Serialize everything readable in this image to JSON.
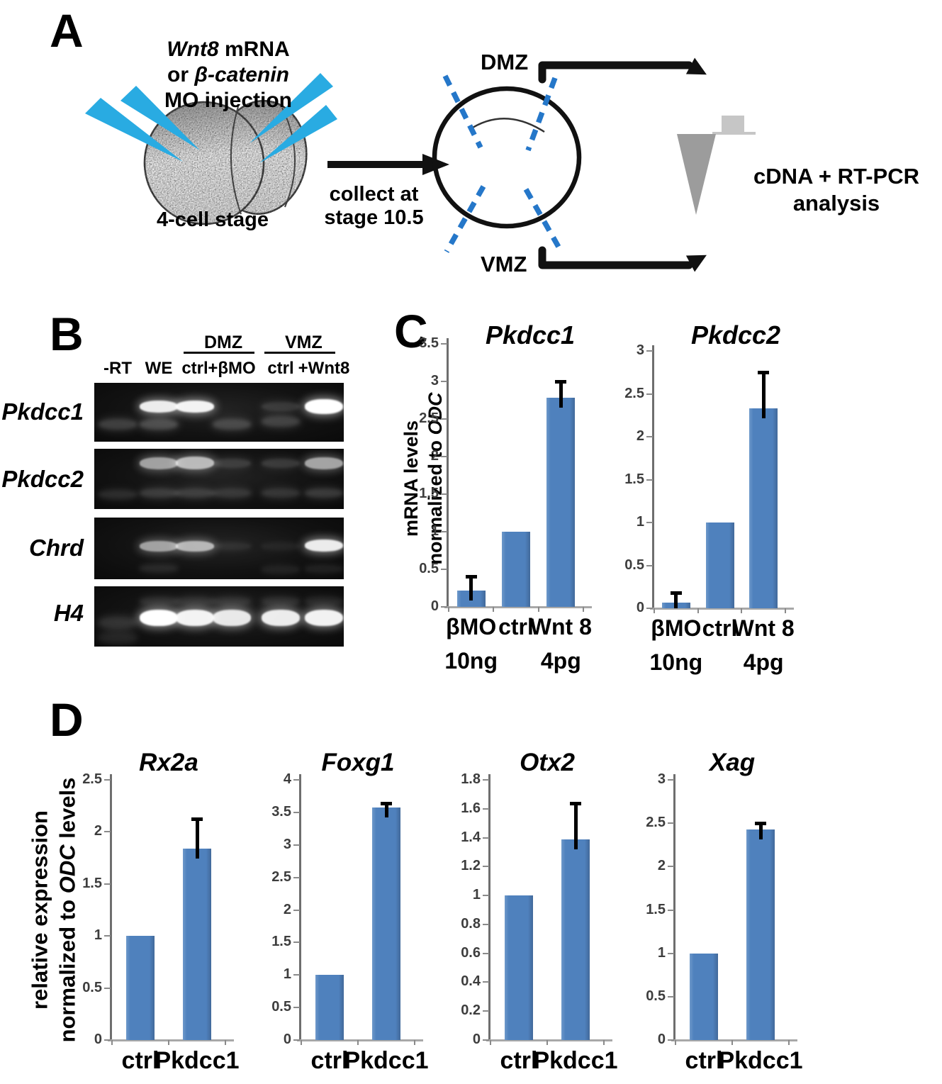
{
  "panel_labels": {
    "a": "A",
    "b": "B",
    "c": "C",
    "d": "D"
  },
  "panel_a": {
    "injection": {
      "l1a": "Wnt8",
      "l1b": " mRNA",
      "l2a": "or ",
      "l2b": "β-catenin",
      "l3": "MO injection"
    },
    "stage_label": "4-cell stage",
    "arrow_label_l1": "collect at",
    "arrow_label_l2": "stage 10.5",
    "dmz": "DMZ",
    "vmz": "VMZ",
    "result_l1": "cDNA + RT-PCR",
    "result_l2": "analysis",
    "colors": {
      "needle": "#29abe2",
      "dashed_cut": "#2577c9",
      "tube": "#9c9c9c",
      "tube_cap": "#c6c6c6",
      "arrow": "#111111"
    }
  },
  "panel_b": {
    "group_headers": [
      "DMZ",
      "VMZ"
    ],
    "lane_headers": [
      "-RT",
      "WE",
      "ctrl",
      "+βMO",
      "ctrl",
      "+Wnt8"
    ],
    "row_labels": [
      "Pkdcc1",
      "Pkdcc2",
      "Chrd",
      "H4"
    ],
    "lane_fracs": [
      0.094,
      0.258,
      0.403,
      0.551,
      0.747,
      0.92
    ],
    "strips": [
      {
        "label": "Pkdcc1",
        "bands": [
          [
            1,
            0.4,
            0.92,
            17,
            1
          ],
          [
            2,
            0.4,
            0.95,
            17,
            1
          ],
          [
            4,
            0.4,
            0.15,
            13,
            2
          ],
          [
            5,
            0.4,
            1.0,
            21,
            1
          ],
          [
            0,
            0.7,
            0.2,
            15,
            3
          ],
          [
            1,
            0.7,
            0.25,
            15,
            3
          ],
          [
            3,
            0.7,
            0.22,
            15,
            3
          ],
          [
            4,
            0.66,
            0.2,
            15,
            3
          ]
        ]
      },
      {
        "label": "Pkdcc2",
        "bands": [
          [
            1,
            0.24,
            0.6,
            17,
            1
          ],
          [
            2,
            0.23,
            0.7,
            18,
            1
          ],
          [
            3,
            0.24,
            0.16,
            13,
            2
          ],
          [
            4,
            0.24,
            0.16,
            13,
            2
          ],
          [
            5,
            0.24,
            0.62,
            17,
            1
          ],
          [
            0,
            0.76,
            0.12,
            13,
            3
          ],
          [
            1,
            0.74,
            0.18,
            13,
            3
          ],
          [
            2,
            0.74,
            0.18,
            13,
            3
          ],
          [
            3,
            0.74,
            0.15,
            13,
            3
          ],
          [
            4,
            0.74,
            0.15,
            13,
            3
          ],
          [
            5,
            0.74,
            0.18,
            13,
            3
          ]
        ]
      },
      {
        "label": "Chrd",
        "bands": [
          [
            1,
            0.47,
            0.6,
            15,
            1
          ],
          [
            2,
            0.46,
            0.68,
            15,
            1
          ],
          [
            3,
            0.46,
            0.08,
            11,
            2
          ],
          [
            4,
            0.46,
            0.06,
            11,
            2
          ],
          [
            5,
            0.45,
            0.92,
            17,
            1
          ],
          [
            1,
            0.82,
            0.1,
            11,
            3
          ],
          [
            4,
            0.85,
            0.08,
            11,
            3
          ],
          [
            5,
            0.83,
            0.08,
            11,
            3
          ]
        ]
      },
      {
        "label": "H4",
        "bands": [
          [
            1,
            0.52,
            1.0,
            23,
            1
          ],
          [
            2,
            0.52,
            0.95,
            23,
            1
          ],
          [
            3,
            0.52,
            0.9,
            23,
            1
          ],
          [
            4,
            0.52,
            0.92,
            23,
            1
          ],
          [
            5,
            0.52,
            0.95,
            23,
            1
          ],
          [
            1,
            0.25,
            0.12,
            13,
            3
          ],
          [
            2,
            0.25,
            0.12,
            13,
            3
          ],
          [
            3,
            0.25,
            0.12,
            13,
            3
          ],
          [
            4,
            0.25,
            0.12,
            13,
            3
          ],
          [
            5,
            0.25,
            0.1,
            13,
            3
          ],
          [
            0,
            0.6,
            0.15,
            17,
            4
          ],
          [
            0,
            0.85,
            0.1,
            15,
            4
          ]
        ]
      }
    ]
  },
  "c_ylabel": {
    "l1": "mRNA levels",
    "l2a": "normalized to ",
    "l2b": "ODC"
  },
  "d_ylabel": {
    "l1": "relative expression",
    "l2a": "normalized to ",
    "l2b": "ODC",
    "l2c": " levels"
  },
  "chart_data": [
    {
      "type": "bar",
      "title": "Pkdcc1",
      "ylabel": "mRNA levels normalized to ODC",
      "categories": [
        "βMO",
        "ctrl",
        "Wnt 8"
      ],
      "sublabels": [
        "10ng",
        "",
        "4pg"
      ],
      "values": [
        0.22,
        1.0,
        2.78
      ],
      "errors": [
        0.2,
        0,
        0.24
      ],
      "ylim": [
        0,
        3.5
      ],
      "yticks": [
        0,
        0.5,
        1,
        1.5,
        2,
        2.5,
        3,
        3.5
      ]
    },
    {
      "type": "bar",
      "title": "Pkdcc2",
      "ylabel": "mRNA levels normalized to ODC",
      "categories": [
        "βMO",
        "ctrl",
        "Wnt 8"
      ],
      "sublabels": [
        "10ng",
        "",
        "4pg"
      ],
      "values": [
        0.07,
        1.0,
        2.33
      ],
      "errors": [
        0.13,
        0,
        0.44
      ],
      "ylim": [
        0,
        3
      ],
      "yticks": [
        0,
        0.5,
        1,
        1.5,
        2,
        2.5,
        3
      ]
    },
    {
      "type": "bar",
      "title": "Rx2a",
      "ylabel": "relative expression normalized to ODC levels",
      "categories": [
        "ctrl",
        "Pkdcc1"
      ],
      "values": [
        1.0,
        1.84
      ],
      "errors": [
        0,
        0.3
      ],
      "ylim": [
        0,
        2.5
      ],
      "yticks": [
        0,
        0.5,
        1,
        1.5,
        2,
        2.5
      ]
    },
    {
      "type": "bar",
      "title": "Foxg1",
      "ylabel": "relative expression normalized to ODC levels",
      "categories": [
        "ctrl",
        "Pkdcc1"
      ],
      "values": [
        1.0,
        3.57
      ],
      "errors": [
        0,
        0.09
      ],
      "ylim": [
        0,
        4
      ],
      "yticks": [
        0,
        0.5,
        1,
        1.5,
        2,
        2.5,
        3,
        3.5,
        4
      ]
    },
    {
      "type": "bar",
      "title": "Otx2",
      "ylabel": "relative expression normalized to ODC levels",
      "categories": [
        "ctrl",
        "Pkdcc1"
      ],
      "values": [
        1.0,
        1.39
      ],
      "errors": [
        0,
        0.26
      ],
      "ylim": [
        0,
        1.8
      ],
      "yticks": [
        0,
        0.2,
        0.4,
        0.6,
        0.8,
        1,
        1.2,
        1.4,
        1.6,
        1.8
      ]
    },
    {
      "type": "bar",
      "title": "Xag",
      "ylabel": "relative expression normalized to ODC levels",
      "categories": [
        "ctrl",
        "Pkdcc1"
      ],
      "values": [
        1.0,
        2.43
      ],
      "errors": [
        0,
        0.09
      ],
      "ylim": [
        0,
        3
      ],
      "yticks": [
        0,
        0.5,
        1,
        1.5,
        2,
        2.5,
        3
      ]
    }
  ],
  "colors": {
    "bar": "#4f81bd"
  }
}
